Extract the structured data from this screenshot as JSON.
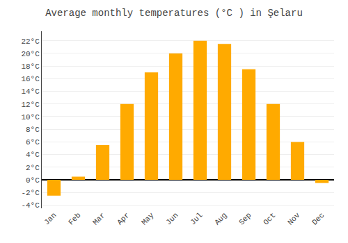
{
  "chart_data": {
    "type": "bar",
    "title": "Average monthly temperatures (°C ) in Şelaru",
    "categories": [
      "Jan",
      "Feb",
      "Mar",
      "Apr",
      "May",
      "Jun",
      "Jul",
      "Aug",
      "Sep",
      "Oct",
      "Nov",
      "Dec"
    ],
    "values": [
      -2.5,
      0.5,
      5.5,
      12.0,
      17.0,
      20.0,
      22.0,
      21.5,
      17.5,
      12.0,
      6.0,
      -0.5
    ],
    "color": "#FFAA00",
    "ylim": [
      -4.5,
      23.5
    ],
    "yticks": [
      {
        "value": -4,
        "label": "-4°C"
      },
      {
        "value": -2,
        "label": "-2°C"
      },
      {
        "value": 0,
        "label": "0°C"
      },
      {
        "value": 2,
        "label": "2°C"
      },
      {
        "value": 4,
        "label": "4°C"
      },
      {
        "value": 6,
        "label": "6°C"
      },
      {
        "value": 8,
        "label": "8°C"
      },
      {
        "value": 10,
        "label": "10°C"
      },
      {
        "value": 12,
        "label": "12°C"
      },
      {
        "value": 14,
        "label": "14°C"
      },
      {
        "value": 16,
        "label": "16°C"
      },
      {
        "value": 18,
        "label": "18°C"
      },
      {
        "value": 20,
        "label": "20°C"
      },
      {
        "value": 22,
        "label": "22°C"
      }
    ],
    "grid": true
  }
}
